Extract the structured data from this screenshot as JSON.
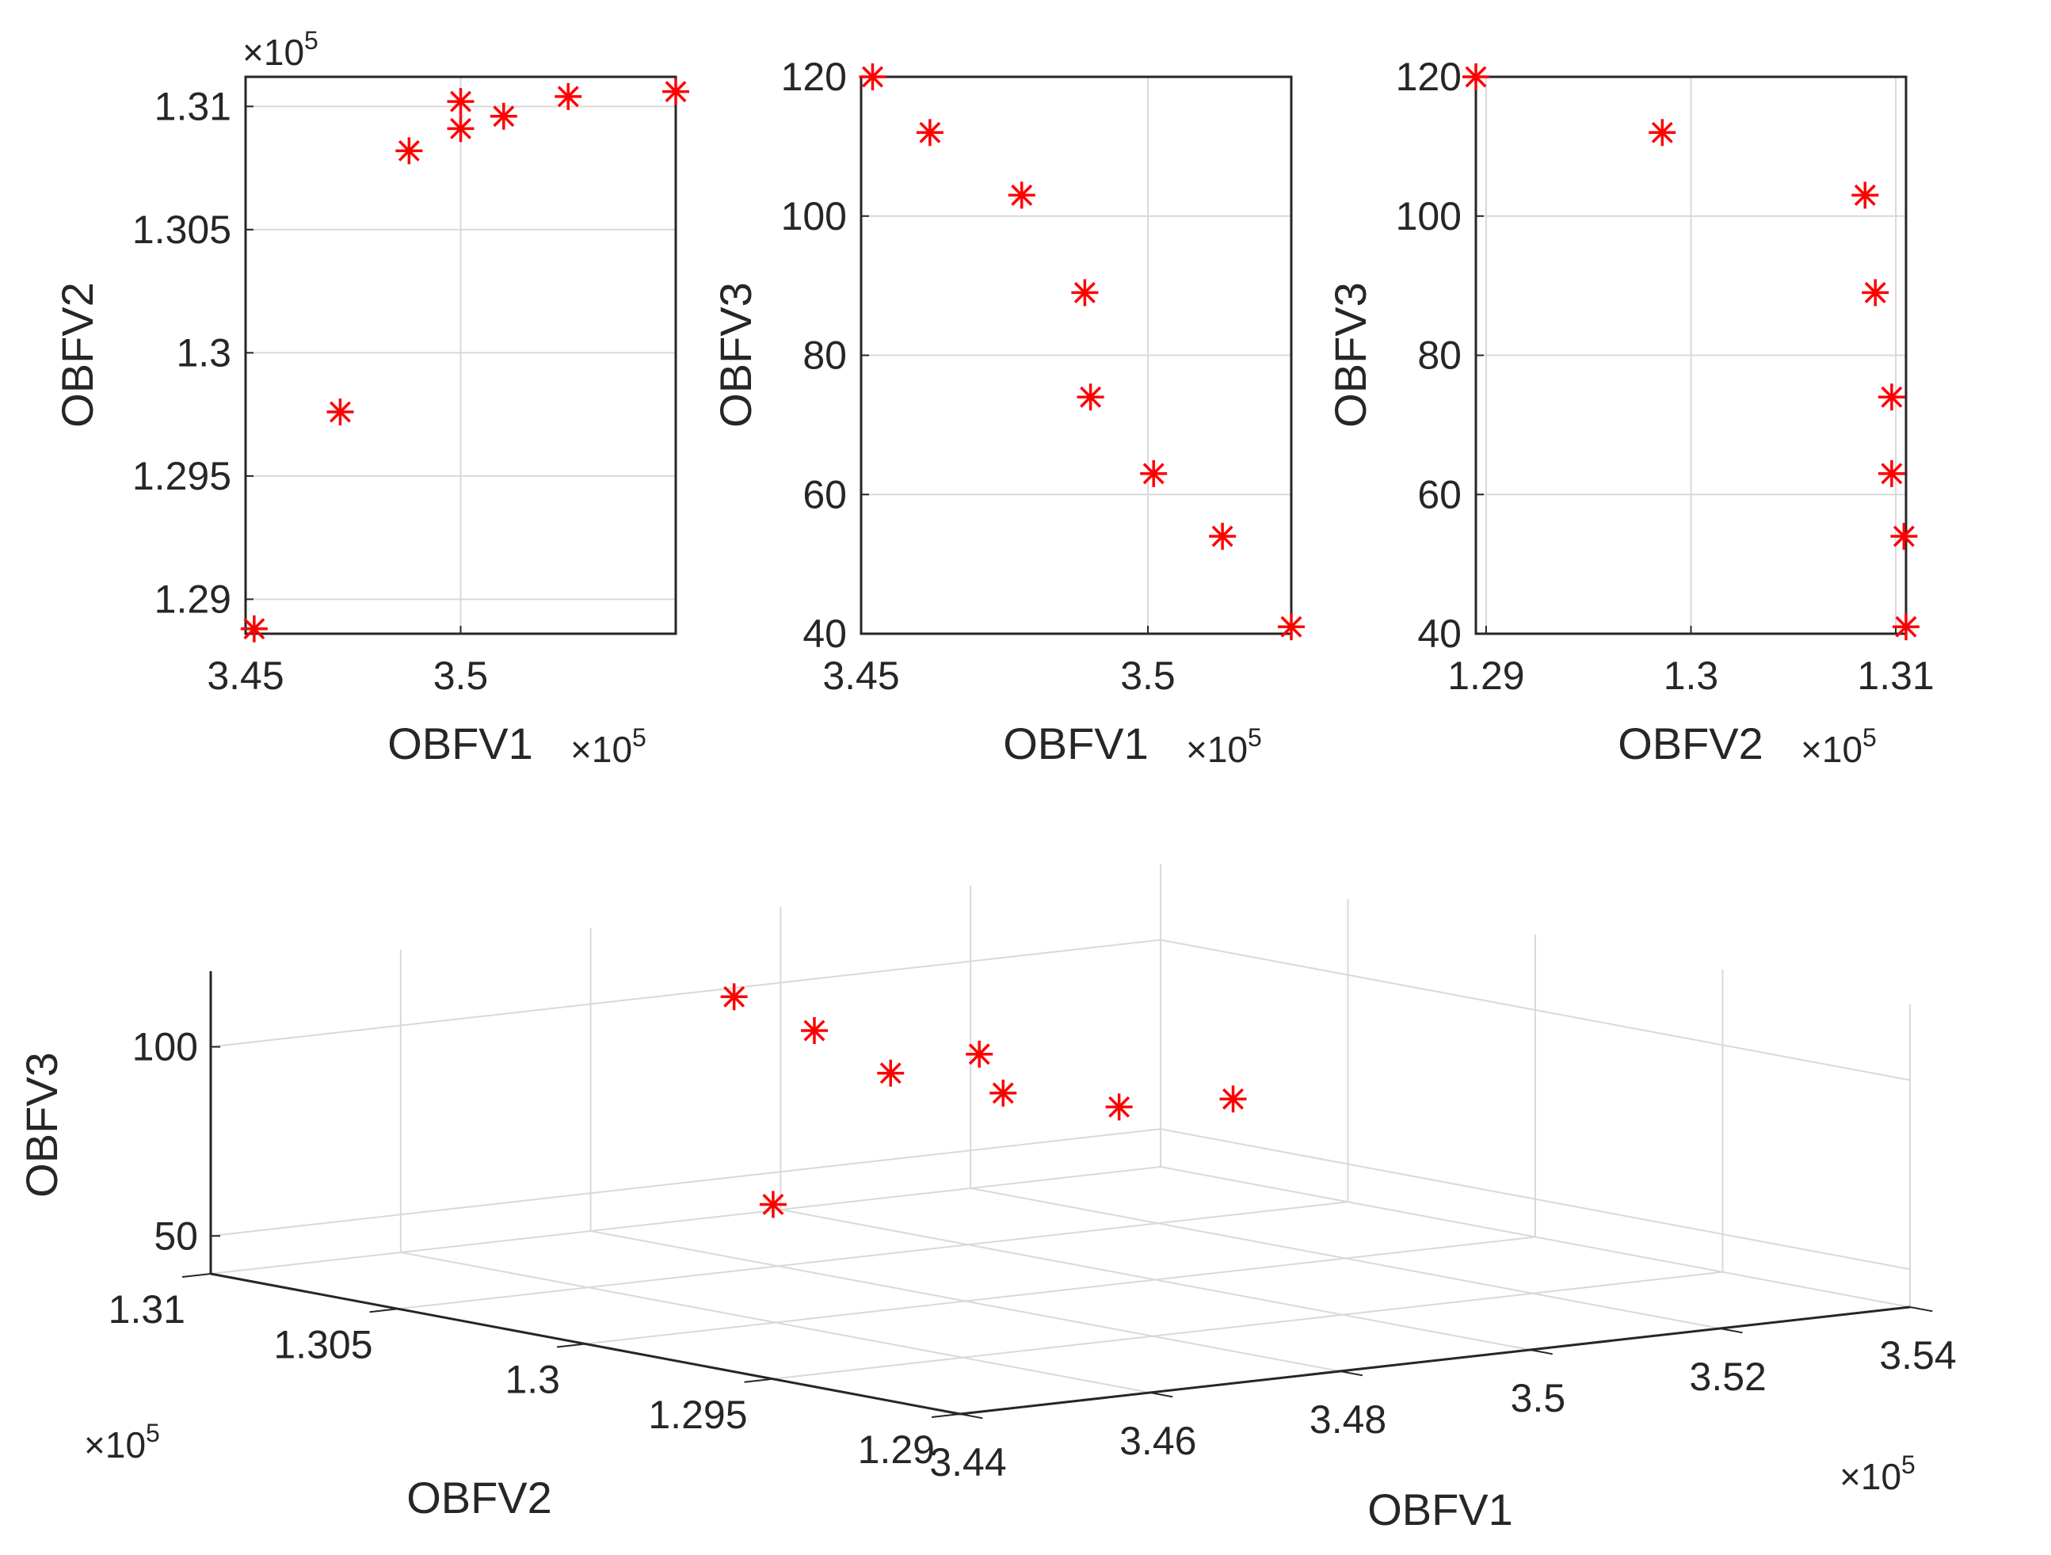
{
  "figure": {
    "marker_color": "#ff0000",
    "axis_color": "#262626",
    "grid_color": "#d9d9d9"
  },
  "chart_data": [
    {
      "id": "p12",
      "type": "scatter",
      "marker": "asterisk",
      "xlabel": "OBFV1",
      "ylabel": "OBFV2",
      "xlim": [
        345000,
        355000
      ],
      "ylim": [
        128860,
        131120
      ],
      "xticks": [
        345000,
        350000
      ],
      "xtick_labels": [
        "3.45",
        "3.5"
      ],
      "yticks": [
        129000,
        129500,
        130000,
        130500,
        131000
      ],
      "ytick_labels": [
        "1.29",
        "1.295",
        "1.3",
        "1.305",
        "1.31"
      ],
      "x_exponent": "×10",
      "x_exponent_power": "5",
      "y_exponent": "×10",
      "y_exponent_power": "5",
      "grid": true,
      "points": [
        {
          "x": 345200,
          "y": 128880
        },
        {
          "x": 347200,
          "y": 129760
        },
        {
          "x": 348800,
          "y": 130820
        },
        {
          "x": 350000,
          "y": 130910
        },
        {
          "x": 351000,
          "y": 130960
        },
        {
          "x": 352500,
          "y": 131040
        },
        {
          "x": 355000,
          "y": 131060
        },
        {
          "x": 350000,
          "y": 131020
        }
      ]
    },
    {
      "id": "p13",
      "type": "scatter",
      "marker": "asterisk",
      "xlabel": "OBFV1",
      "ylabel": "OBFV3",
      "xlim": [
        345000,
        352500
      ],
      "ylim": [
        40,
        120
      ],
      "xticks": [
        345000,
        350000
      ],
      "xtick_labels": [
        "3.45",
        "3.5"
      ],
      "yticks": [
        40,
        60,
        80,
        100,
        120
      ],
      "ytick_labels": [
        "40",
        "60",
        "80",
        "100",
        "120"
      ],
      "x_exponent": "×10",
      "x_exponent_power": "5",
      "grid": true,
      "points": [
        {
          "x": 345200,
          "y": 120
        },
        {
          "x": 346200,
          "y": 112
        },
        {
          "x": 347800,
          "y": 103
        },
        {
          "x": 348900,
          "y": 89
        },
        {
          "x": 349000,
          "y": 74
        },
        {
          "x": 350100,
          "y": 63
        },
        {
          "x": 351300,
          "y": 54
        },
        {
          "x": 352500,
          "y": 41
        }
      ]
    },
    {
      "id": "p23",
      "type": "scatter",
      "marker": "asterisk",
      "xlabel": "OBFV2",
      "ylabel": "OBFV3",
      "xlim": [
        128950,
        131050
      ],
      "ylim": [
        40,
        120
      ],
      "xticks": [
        129000,
        130000,
        131000
      ],
      "xtick_labels": [
        "1.29",
        "1.3",
        "1.31"
      ],
      "yticks": [
        40,
        60,
        80,
        100,
        120
      ],
      "ytick_labels": [
        "40",
        "60",
        "80",
        "100",
        "120"
      ],
      "x_exponent": "×10",
      "x_exponent_power": "5",
      "grid": true,
      "points": [
        {
          "x": 128950,
          "y": 120
        },
        {
          "x": 129860,
          "y": 112
        },
        {
          "x": 130850,
          "y": 103
        },
        {
          "x": 130900,
          "y": 89
        },
        {
          "x": 130980,
          "y": 74
        },
        {
          "x": 130980,
          "y": 63
        },
        {
          "x": 131040,
          "y": 54
        },
        {
          "x": 131050,
          "y": 41
        }
      ]
    },
    {
      "id": "p3d",
      "type": "scatter3d",
      "marker": "asterisk",
      "xlabel": "OBFV1",
      "ylabel": "OBFV2",
      "zlabel": "OBFV3",
      "xlim": [
        344000,
        354000
      ],
      "ylim": [
        129000,
        131000
      ],
      "zlim": [
        40,
        120
      ],
      "xticks": [
        344000,
        346000,
        348000,
        350000,
        352000,
        354000
      ],
      "xtick_labels": [
        "3.44",
        "3.46",
        "3.48",
        "3.5",
        "3.52",
        "3.54"
      ],
      "yticks": [
        129000,
        129500,
        130000,
        130500,
        131000
      ],
      "ytick_labels": [
        "1.29",
        "1.295",
        "1.3",
        "1.305",
        "1.31"
      ],
      "zticks": [
        50,
        100
      ],
      "ztick_labels": [
        "50",
        "100"
      ],
      "x_exponent": "×10",
      "x_exponent_power": "5",
      "y_exponent": "×10",
      "y_exponent_power": "5",
      "grid": true,
      "points": [
        {
          "x": 345200,
          "y": 128880,
          "z": 120
        },
        {
          "x": 347200,
          "y": 129760,
          "z": 112
        },
        {
          "x": 348800,
          "y": 130820,
          "z": 103
        },
        {
          "x": 350000,
          "y": 130910,
          "z": 89
        },
        {
          "x": 351000,
          "y": 130960,
          "z": 74
        },
        {
          "x": 352500,
          "y": 131040,
          "z": 63
        },
        {
          "x": 355000,
          "y": 131060,
          "z": 54
        },
        {
          "x": 350000,
          "y": 131020,
          "z": 41
        }
      ]
    }
  ]
}
